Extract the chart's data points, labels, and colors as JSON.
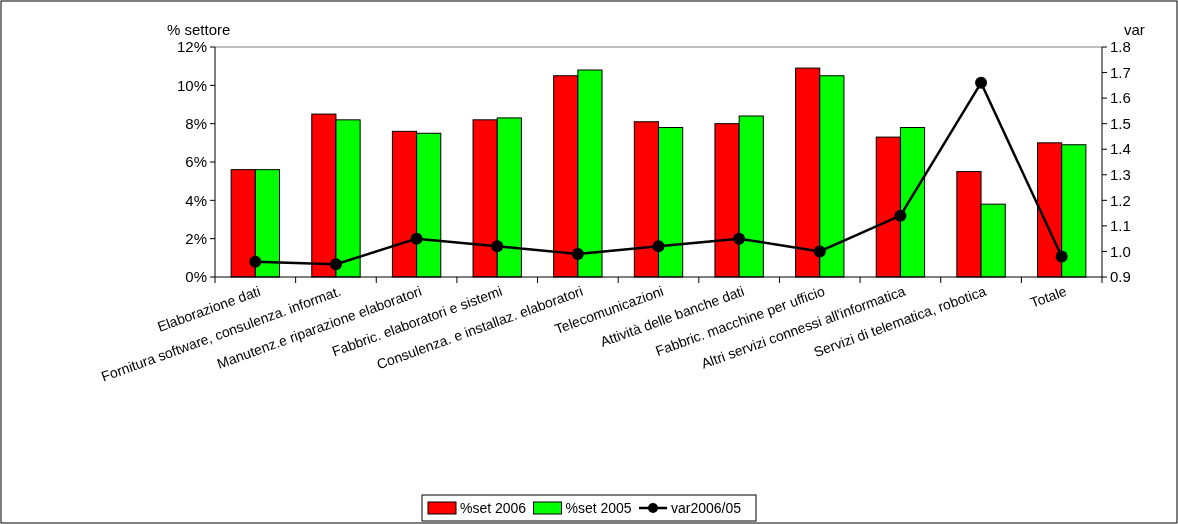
{
  "chart_data": {
    "type": "bar",
    "ylabel": "% settore",
    "y2label": "var",
    "categories": [
      "Elaborazione dati",
      "Fornitura software, consulenza. informat.",
      "Manutenz.e riparazione elaboratori",
      "Fabbric. elaboratori e sistemi",
      "Consulenza. e installaz. elaboratori",
      "Telecomunicazioni",
      "Attività delle banche dati",
      "Fabbric. macchine per ufficio",
      "Altri servizi connessi all'informatica",
      "Servizi di telematica, robotica",
      "Totale"
    ],
    "series": [
      {
        "name": "%set 2006",
        "color": "#ff0000",
        "values": [
          5.6,
          8.5,
          7.6,
          8.2,
          10.5,
          8.1,
          8.0,
          10.9,
          7.3,
          5.5,
          7.0
        ]
      },
      {
        "name": "%set 2005",
        "color": "#00ff00",
        "values": [
          5.6,
          8.2,
          7.5,
          8.3,
          10.8,
          7.8,
          8.4,
          10.5,
          7.8,
          3.8,
          6.9
        ]
      },
      {
        "name": "var2006/05",
        "type": "line",
        "axis": "y2",
        "color": "#000000",
        "marker": "circle",
        "values": [
          0.96,
          0.95,
          1.05,
          1.02,
          0.99,
          1.02,
          1.05,
          1.0,
          1.14,
          1.66,
          0.98
        ]
      }
    ],
    "ylim": [
      0,
      12
    ],
    "yticks": [
      {
        "value": 0,
        "label": "0%"
      },
      {
        "value": 2,
        "label": "2%"
      },
      {
        "value": 4,
        "label": "4%"
      },
      {
        "value": 6,
        "label": "6%"
      },
      {
        "value": 8,
        "label": "8%"
      },
      {
        "value": 10,
        "label": "10%"
      },
      {
        "value": 12,
        "label": "12%"
      }
    ],
    "y2lim": [
      0.9,
      1.8
    ],
    "y2ticks": [
      0.9,
      {
        "value": 1,
        "label": "1.0"
      },
      1.1,
      1.2,
      1.3,
      1.4,
      1.5,
      1.6,
      1.7,
      1.8
    ],
    "legend": "bottom"
  }
}
